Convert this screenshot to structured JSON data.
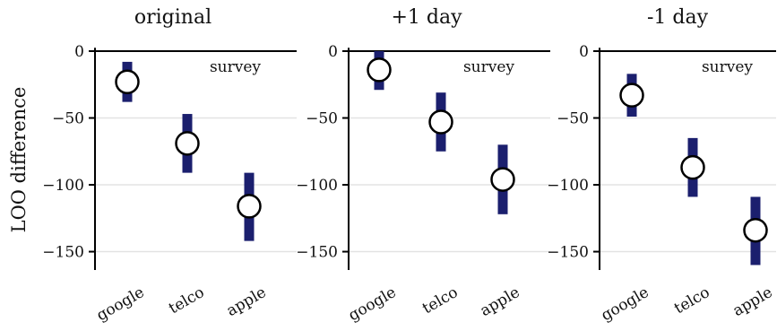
{
  "figure": {
    "ylabel": "LOO difference",
    "reference_label": "survey",
    "colors": {
      "interval": "#1b1f6e",
      "marker_fill": "#ffffff",
      "marker_edge": "#000000",
      "grid": "#e3e3e3"
    }
  },
  "chart_data": [
    {
      "type": "scatter",
      "title": "original",
      "categories": [
        "google",
        "telco",
        "apple"
      ],
      "values": [
        -23,
        -69,
        -116
      ],
      "intervals": [
        [
          -38,
          -8
        ],
        [
          -91,
          -47
        ],
        [
          -142,
          -91
        ]
      ],
      "ylabel": "LOO difference",
      "yticks": [
        0,
        -50,
        -100,
        -150
      ],
      "ylim": [
        -163,
        2
      ],
      "grid": true
    },
    {
      "type": "scatter",
      "title": "+1 day",
      "categories": [
        "google",
        "telco",
        "apple"
      ],
      "values": [
        -14,
        -53,
        -96
      ],
      "intervals": [
        [
          -29,
          0
        ],
        [
          -75,
          -31
        ],
        [
          -122,
          -70
        ]
      ],
      "yticks": [
        0,
        -50,
        -100,
        -150
      ],
      "ylim": [
        -163,
        2
      ],
      "grid": true
    },
    {
      "type": "scatter",
      "title": "-1 day",
      "categories": [
        "google",
        "telco",
        "apple"
      ],
      "values": [
        -33,
        -87,
        -134
      ],
      "intervals": [
        [
          -49,
          -17
        ],
        [
          -109,
          -65
        ],
        [
          -160,
          -109
        ]
      ],
      "yticks": [
        0,
        -50,
        -100,
        -150
      ],
      "ylim": [
        -163,
        2
      ],
      "grid": true
    }
  ]
}
